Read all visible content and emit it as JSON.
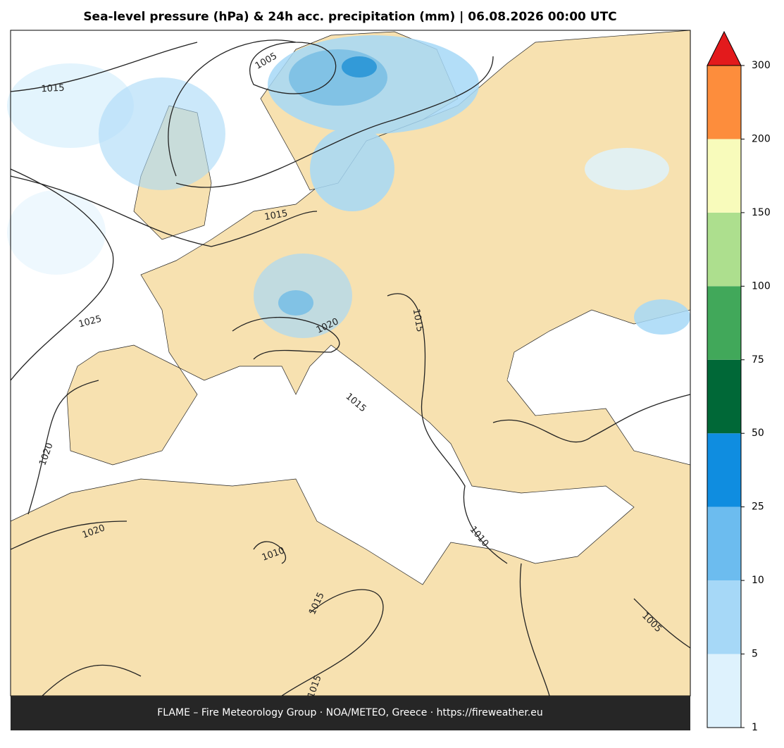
{
  "title": "Sea-level pressure (hPa) & 24h acc. precipitation (mm)  |  06.08.2026 00:00 UTC",
  "footer": "FLAME – Fire Meteorology Group · NOA/METEO, Greece · https://fireweather.eu",
  "contour_labels": [
    1015,
    1005,
    1015,
    1025,
    1020,
    1015,
    1015,
    1020,
    1020,
    1010,
    1010,
    1015,
    1005,
    1015
  ],
  "colorbar": {
    "ticks": [
      1,
      5,
      10,
      25,
      50,
      75,
      100,
      150,
      200,
      300
    ],
    "colors": [
      "#def2fd",
      "#a6d8f7",
      "#6cbcef",
      "#0f8de0",
      "#006837",
      "#41a85a",
      "#addf8e",
      "#f8fbbb",
      "#fd8d3c"
    ],
    "extend_color": "#e31a1c"
  }
}
